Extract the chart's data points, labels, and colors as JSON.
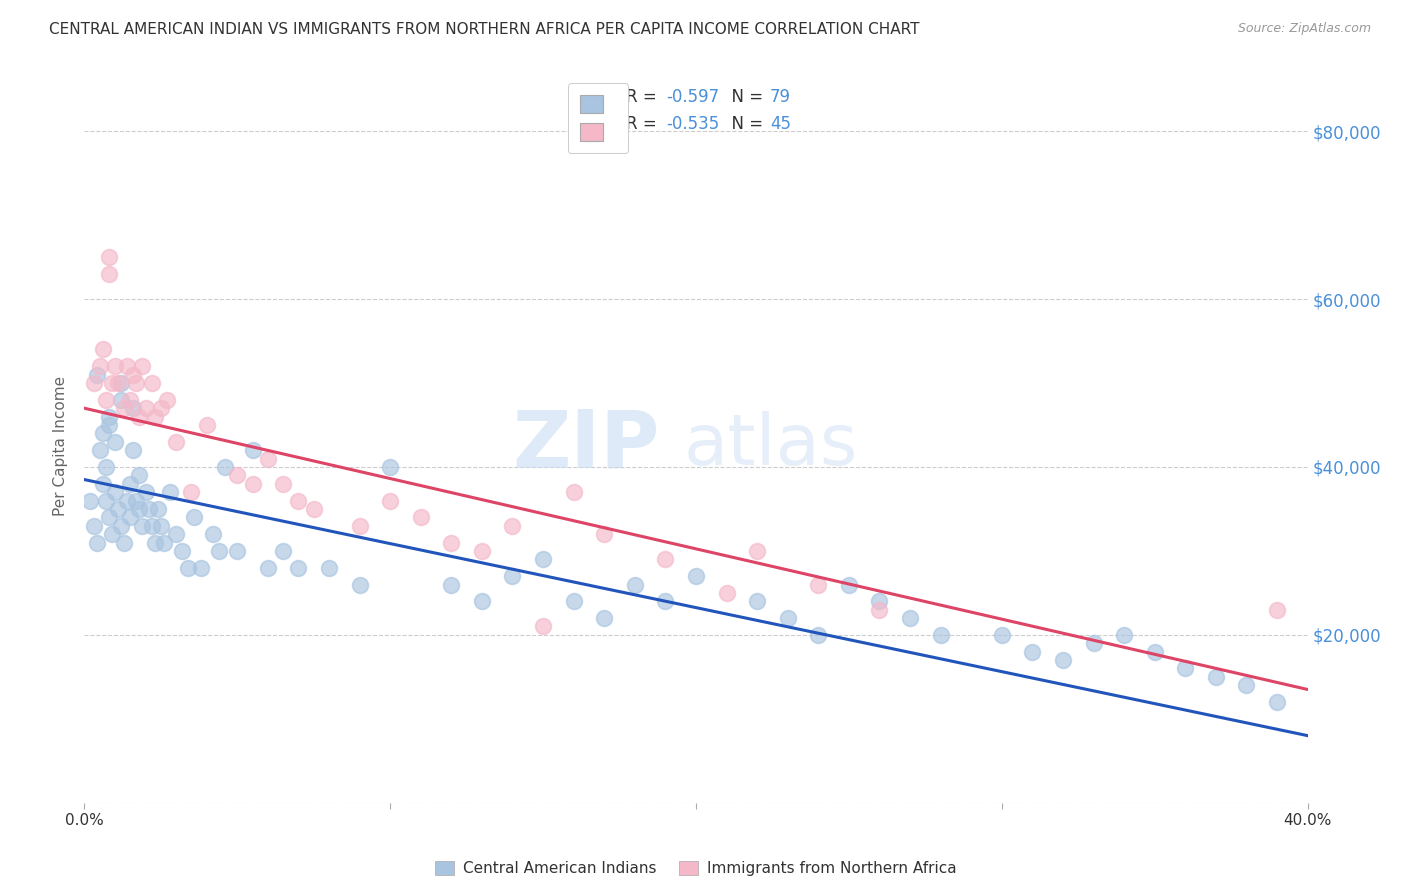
{
  "title": "CENTRAL AMERICAN INDIAN VS IMMIGRANTS FROM NORTHERN AFRICA PER CAPITA INCOME CORRELATION CHART",
  "source": "Source: ZipAtlas.com",
  "ylabel": "Per Capita Income",
  "xmin": 0.0,
  "xmax": 0.4,
  "ymin": 0,
  "ymax": 85000,
  "yticks": [
    0,
    20000,
    40000,
    60000,
    80000
  ],
  "ytick_labels": [
    "",
    "$20,000",
    "$40,000",
    "$60,000",
    "$80,000"
  ],
  "blue_R": -0.597,
  "blue_N": 79,
  "pink_R": -0.535,
  "pink_N": 45,
  "blue_color": "#a8c4e0",
  "blue_edge_color": "#a8c4e0",
  "pink_color": "#f4b8c8",
  "pink_edge_color": "#f4b8c8",
  "blue_line_color": "#2255bb",
  "pink_line_color": "#dd4466",
  "legend_label_blue": "Central American Indians",
  "legend_label_pink": "Immigrants from Northern Africa",
  "blue_trend_x0": 0.0,
  "blue_trend_y0": 38500,
  "blue_trend_x1": 0.4,
  "blue_trend_y1": 8000,
  "pink_trend_x0": 0.0,
  "pink_trend_y0": 47000,
  "pink_trend_x1": 0.4,
  "pink_trend_y1": 13500,
  "blue_scatter_x": [
    0.002,
    0.003,
    0.004,
    0.005,
    0.006,
    0.006,
    0.007,
    0.007,
    0.008,
    0.008,
    0.009,
    0.01,
    0.01,
    0.011,
    0.012,
    0.012,
    0.013,
    0.014,
    0.015,
    0.015,
    0.016,
    0.017,
    0.018,
    0.018,
    0.019,
    0.02,
    0.021,
    0.022,
    0.023,
    0.024,
    0.025,
    0.026,
    0.028,
    0.03,
    0.032,
    0.034,
    0.036,
    0.038,
    0.042,
    0.044,
    0.046,
    0.05,
    0.055,
    0.06,
    0.065,
    0.07,
    0.08,
    0.09,
    0.1,
    0.12,
    0.13,
    0.14,
    0.15,
    0.16,
    0.17,
    0.18,
    0.19,
    0.2,
    0.22,
    0.23,
    0.24,
    0.25,
    0.26,
    0.27,
    0.28,
    0.3,
    0.31,
    0.32,
    0.33,
    0.34,
    0.35,
    0.36,
    0.37,
    0.38,
    0.39,
    0.004,
    0.008,
    0.012,
    0.016
  ],
  "blue_scatter_y": [
    36000,
    33000,
    31000,
    42000,
    38000,
    44000,
    36000,
    40000,
    34000,
    46000,
    32000,
    37000,
    43000,
    35000,
    33000,
    48000,
    31000,
    36000,
    34000,
    38000,
    42000,
    36000,
    35000,
    39000,
    33000,
    37000,
    35000,
    33000,
    31000,
    35000,
    33000,
    31000,
    37000,
    32000,
    30000,
    28000,
    34000,
    28000,
    32000,
    30000,
    40000,
    30000,
    42000,
    28000,
    30000,
    28000,
    28000,
    26000,
    40000,
    26000,
    24000,
    27000,
    29000,
    24000,
    22000,
    26000,
    24000,
    27000,
    24000,
    22000,
    20000,
    26000,
    24000,
    22000,
    20000,
    20000,
    18000,
    17000,
    19000,
    20000,
    18000,
    16000,
    15000,
    14000,
    12000,
    51000,
    45000,
    50000,
    47000
  ],
  "pink_scatter_x": [
    0.003,
    0.005,
    0.006,
    0.007,
    0.008,
    0.009,
    0.01,
    0.011,
    0.013,
    0.014,
    0.015,
    0.016,
    0.017,
    0.018,
    0.019,
    0.02,
    0.022,
    0.023,
    0.025,
    0.027,
    0.03,
    0.035,
    0.04,
    0.05,
    0.055,
    0.06,
    0.065,
    0.07,
    0.075,
    0.09,
    0.1,
    0.11,
    0.12,
    0.13,
    0.14,
    0.15,
    0.16,
    0.17,
    0.19,
    0.21,
    0.22,
    0.24,
    0.26,
    0.39,
    0.008
  ],
  "pink_scatter_y": [
    50000,
    52000,
    54000,
    48000,
    65000,
    50000,
    52000,
    50000,
    47000,
    52000,
    48000,
    51000,
    50000,
    46000,
    52000,
    47000,
    50000,
    46000,
    47000,
    48000,
    43000,
    37000,
    45000,
    39000,
    38000,
    41000,
    38000,
    36000,
    35000,
    33000,
    36000,
    34000,
    31000,
    30000,
    33000,
    21000,
    37000,
    32000,
    29000,
    25000,
    30000,
    26000,
    23000,
    23000,
    63000
  ],
  "watermark_zip": "ZIP",
  "watermark_atlas": "atlas",
  "background_color": "#ffffff",
  "grid_color": "#cccccc",
  "tick_color": "#4a90d9",
  "label_color": "#333333",
  "source_color": "#999999"
}
